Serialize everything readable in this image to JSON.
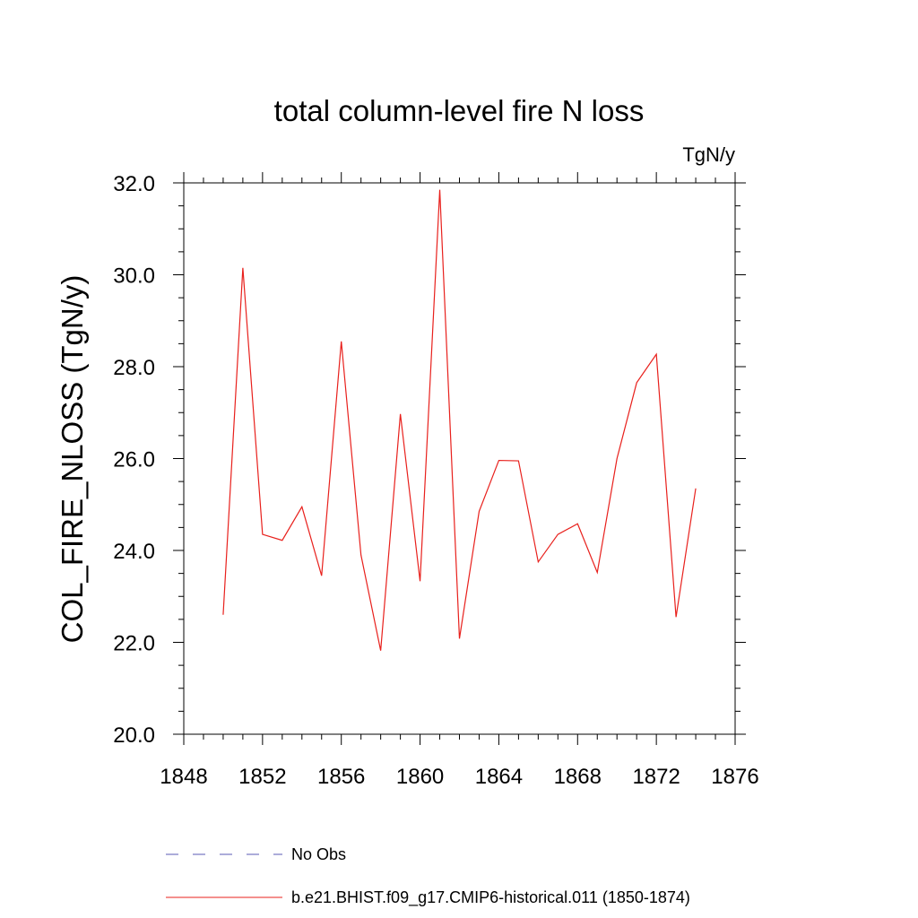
{
  "chart_data": {
    "type": "line",
    "title": "total column-level fire N loss",
    "units_label": "TgN/y",
    "ylabel": "COL_FIRE_NLOSS  (TgN/y)",
    "xlabel": "",
    "xlim": [
      1848,
      1876
    ],
    "ylim": [
      20.0,
      32.0
    ],
    "x_ticks": [
      1848,
      1852,
      1856,
      1860,
      1864,
      1868,
      1872,
      1876
    ],
    "x_tick_labels": [
      "1848",
      "1852",
      "1856",
      "1860",
      "1864",
      "1868",
      "1872",
      "1876"
    ],
    "y_ticks": [
      20.0,
      22.0,
      24.0,
      26.0,
      28.0,
      30.0,
      32.0
    ],
    "y_tick_labels": [
      "20.0",
      "22.0",
      "24.0",
      "26.0",
      "28.0",
      "30.0",
      "32.0"
    ],
    "x_minor_step": 1,
    "y_minor_step": 0.5,
    "grid": false,
    "legend_position": "bottom",
    "series": [
      {
        "name": "b.e21.BHIST.f09_g17.CMIP6-historical.011 (1850-1874)",
        "color": "#e8201c",
        "style": "solid",
        "x": [
          1850,
          1851,
          1852,
          1853,
          1854,
          1855,
          1856,
          1857,
          1858,
          1859,
          1860,
          1861,
          1862,
          1863,
          1864,
          1865,
          1866,
          1867,
          1868,
          1869,
          1870,
          1871,
          1872,
          1873,
          1874
        ],
        "y": [
          22.6,
          30.15,
          24.35,
          24.22,
          24.95,
          23.45,
          28.55,
          23.9,
          21.82,
          26.97,
          23.33,
          31.85,
          22.08,
          24.85,
          25.96,
          25.95,
          23.75,
          24.35,
          24.58,
          23.52,
          26.0,
          27.65,
          28.27,
          22.55,
          25.35
        ]
      }
    ],
    "legend": [
      {
        "label": "No Obs",
        "color": "#5a5ab4",
        "style": "dashed"
      },
      {
        "label": "b.e21.BHIST.f09_g17.CMIP6-historical.011 (1850-1874)",
        "color": "#e8201c",
        "style": "solid"
      }
    ]
  }
}
